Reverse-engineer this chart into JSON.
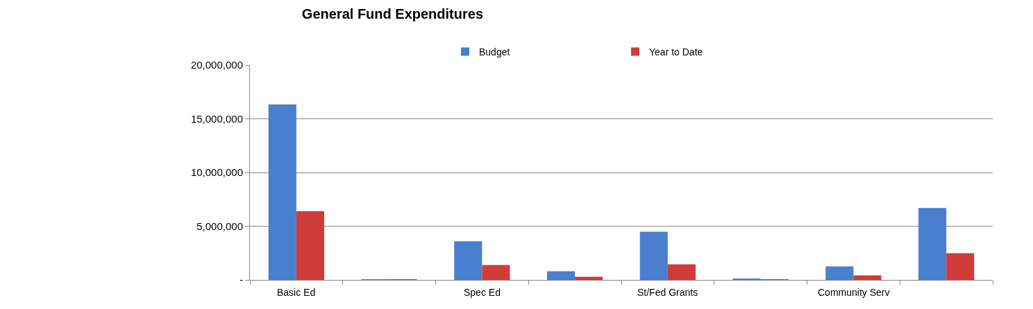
{
  "chart_data": {
    "type": "bar",
    "title": "General Fund Expenditures",
    "categories": [
      "Basic Ed",
      null,
      "Spec Ed",
      null,
      "St/Fed Grants",
      null,
      "Community Serv",
      null
    ],
    "series": [
      {
        "name": "Budget",
        "color": "#4a7fcf",
        "values": [
          16340000,
          50000,
          3590000,
          810000,
          4490000,
          80000,
          1260000,
          6690000
        ]
      },
      {
        "name": "Year to Date",
        "color": "#d03c3a",
        "values": [
          6410000,
          20000,
          1390000,
          290000,
          1450000,
          20000,
          420000,
          2490000
        ]
      }
    ],
    "ylim": [
      0,
      20000000
    ],
    "yticks": [
      {
        "value": 0,
        "label": "-"
      },
      {
        "value": 5000000,
        "label": "5,000,000"
      },
      {
        "value": 10000000,
        "label": "10,000,000"
      },
      {
        "value": 15000000,
        "label": "15,000,000"
      },
      {
        "value": 20000000,
        "label": "20,000,000"
      }
    ],
    "grid": "y",
    "legend": "top"
  }
}
